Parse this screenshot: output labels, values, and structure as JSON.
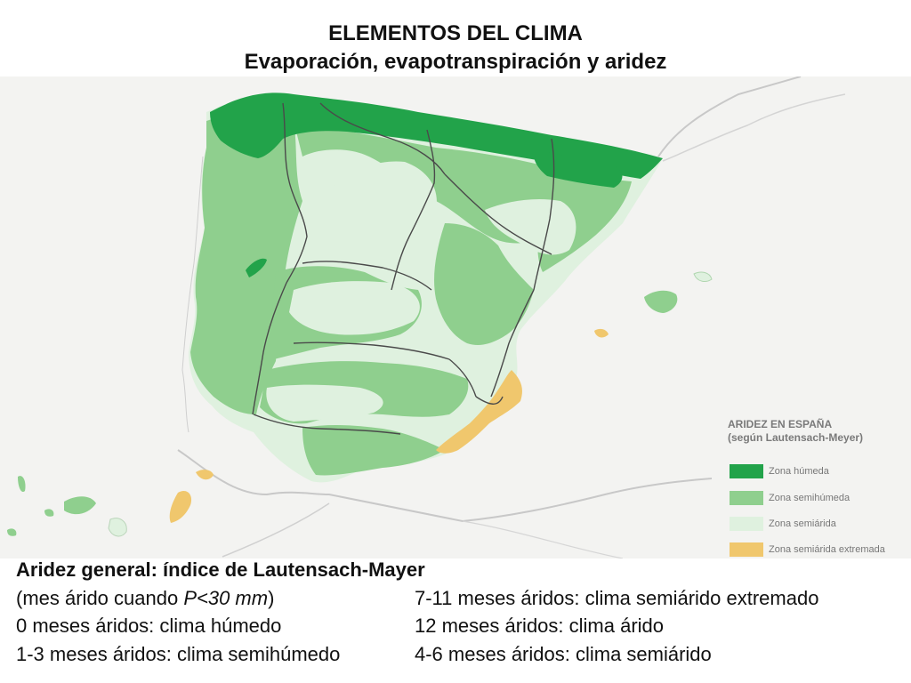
{
  "title": {
    "line1": "ELEMENTOS DEL CLIMA",
    "line2": "Evaporación, evapotranspiración y aridez"
  },
  "legend": {
    "title_line1": "ARIDEZ EN ESPAÑA",
    "title_line2": "(según Lautensach-Meyer)",
    "items": [
      {
        "label": "Zona húmeda",
        "color": "#22a34a"
      },
      {
        "label": "Zona semihúmeda",
        "color": "#8fcf8e"
      },
      {
        "label": "Zona semiárida",
        "color": "#dff1df"
      },
      {
        "label": "Zona semiárida extremada",
        "color": "#f0c76d"
      }
    ]
  },
  "colors": {
    "humeda": "#22a34a",
    "semihumeda": "#8fcf8e",
    "semiarida": "#dff1df",
    "extremada": "#f0c76d",
    "border": "#4a4a4a",
    "coast": "#c8c8c8"
  },
  "info": {
    "title": "Aridez general: índice de Lautensach-Mayer",
    "left": [
      {
        "before": "(mes árido cuando ",
        "italic": "P<30 mm",
        "after": ")"
      },
      {
        "before": "0 meses áridos: clima húmedo",
        "italic": "",
        "after": ""
      },
      {
        "before": "1-3 meses áridos: clima semihúmedo",
        "italic": "",
        "after": ""
      }
    ],
    "right": [
      "7-11 meses áridos: clima semiárido extremado",
      "12 meses áridos: clima árido",
      "4-6 meses áridos: clima semiárido"
    ]
  }
}
